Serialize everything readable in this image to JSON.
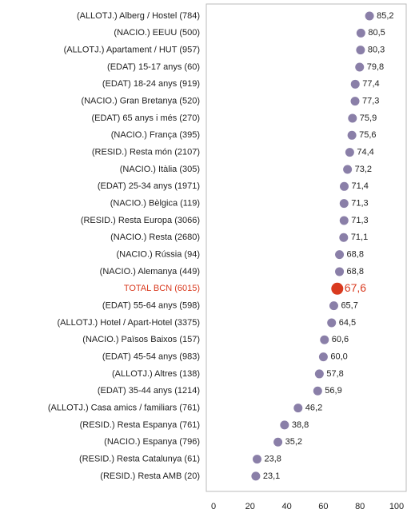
{
  "chart_data": {
    "type": "dot",
    "categories": [
      "(ALLOTJ.) Alberg / Hostel (784)",
      "(NACIO.) EEUU (500)",
      "(ALLOTJ.) Apartament / HUT (957)",
      "(EDAT) 15-17 anys (60)",
      "(EDAT) 18-24 anys (919)",
      "(NACIO.) Gran Bretanya (520)",
      "(EDAT) 65 anys i més (270)",
      "(NACIO.) França (395)",
      "(RESID.) Resta món (2107)",
      "(NACIO.) Itàlia (305)",
      "(EDAT) 25-34 anys (1971)",
      "(NACIO.) Bèlgica (119)",
      "(RESID.) Resta Europa (3066)",
      "(NACIO.) Resta (2680)",
      "(NACIO.) Rússia (94)",
      "(NACIO.) Alemanya (449)",
      "TOTAL BCN (6015)",
      "(EDAT) 55-64 anys (598)",
      "(ALLOTJ.) Hotel / Apart-Hotel (3375)",
      "(NACIO.) Països Baixos (157)",
      "(EDAT) 45-54 anys (983)",
      "(ALLOTJ.) Altres (138)",
      "(EDAT) 35-44 anys (1214)",
      "(ALLOTJ.) Casa amics / familiars (761)",
      "(RESID.) Resta Espanya (761)",
      "(NACIO.) Espanya (796)",
      "(RESID.) Resta Catalunya (61)",
      "(RESID.) Resta AMB (20)"
    ],
    "values": [
      85.2,
      80.5,
      80.3,
      79.8,
      77.4,
      77.3,
      75.9,
      75.6,
      74.4,
      73.2,
      71.4,
      71.3,
      71.3,
      71.1,
      68.8,
      68.8,
      67.6,
      65.7,
      64.5,
      60.6,
      60.0,
      57.8,
      56.9,
      46.2,
      38.8,
      35.2,
      23.8,
      23.1
    ],
    "value_labels": [
      "85,2",
      "80,5",
      "80,3",
      "79,8",
      "77,4",
      "77,3",
      "75,9",
      "75,6",
      "74,4",
      "73,2",
      "71,4",
      "71,3",
      "71,3",
      "71,1",
      "68,8",
      "68,8",
      "67,6",
      "65,7",
      "64,5",
      "60,6",
      "60,0",
      "57,8",
      "56,9",
      "46,2",
      "38,8",
      "35,2",
      "23,8",
      "23,1"
    ],
    "color": "#8a7fa8",
    "colors": [
      "#8a7fa8",
      "#8a7fa8",
      "#8a7fa8",
      "#8a7fa8",
      "#8a7fa8",
      "#8a7fa8",
      "#8a7fa8",
      "#8a7fa8",
      "#8a7fa8",
      "#8a7fa8",
      "#8a7fa8",
      "#8a7fa8",
      "#8a7fa8",
      "#8a7fa8",
      "#8a7fa8",
      "#8a7fa8",
      "#d93a1f",
      "#8a7fa8",
      "#8a7fa8",
      "#8a7fa8",
      "#8a7fa8",
      "#8a7fa8",
      "#8a7fa8",
      "#8a7fa8",
      "#8a7fa8",
      "#8a7fa8",
      "#8a7fa8",
      "#8a7fa8"
    ],
    "xlim": [
      0,
      100
    ],
    "xticks": [
      0,
      20,
      40,
      60,
      80,
      100
    ]
  }
}
